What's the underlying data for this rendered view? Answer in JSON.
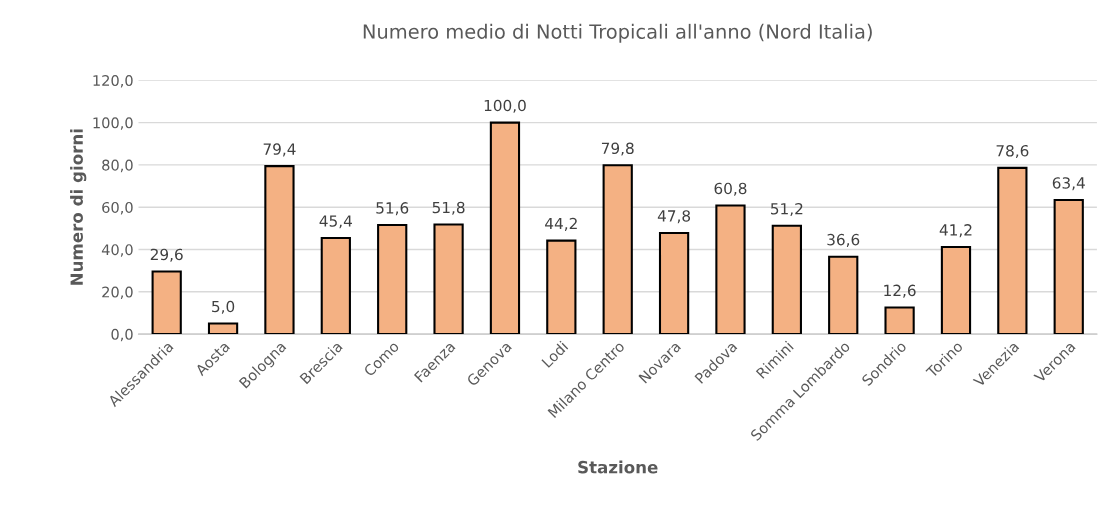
{
  "chart_data": {
    "type": "bar",
    "title": "Numero medio di Notti Tropicali all'anno (Nord Italia)",
    "xlabel": "Stazione",
    "ylabel": "Numero di giorni",
    "categories": [
      "Alessandria",
      "Aosta",
      "Bologna",
      "Brescia",
      "Como",
      "Faenza",
      "Genova",
      "Lodi",
      "Milano Centro",
      "Novara",
      "Padova",
      "Rimini",
      "Somma Lombardo",
      "Sondrio",
      "Torino",
      "Venezia",
      "Verona"
    ],
    "values": [
      29.6,
      5.0,
      79.4,
      45.4,
      51.6,
      51.8,
      100.0,
      44.2,
      79.8,
      47.8,
      60.8,
      51.2,
      36.6,
      12.6,
      41.2,
      78.6,
      63.4
    ],
    "value_labels": [
      "29,6",
      "5,0",
      "79,4",
      "45,4",
      "51,6",
      "51,8",
      "100,0",
      "44,2",
      "79,8",
      "47,8",
      "60,8",
      "51,2",
      "36,6",
      "12,6",
      "41,2",
      "78,6",
      "63,4"
    ],
    "color": "#f4b183",
    "ylim": [
      0,
      120
    ],
    "yticks": [
      {
        "value": 0,
        "label": "0,0"
      },
      {
        "value": 20,
        "label": "20,0"
      },
      {
        "value": 40,
        "label": "40,0"
      },
      {
        "value": 60,
        "label": "60,0"
      },
      {
        "value": 80,
        "label": "80,0"
      },
      {
        "value": 100,
        "label": "100,0"
      },
      {
        "value": 120,
        "label": "120,0"
      }
    ],
    "grid": "y"
  }
}
